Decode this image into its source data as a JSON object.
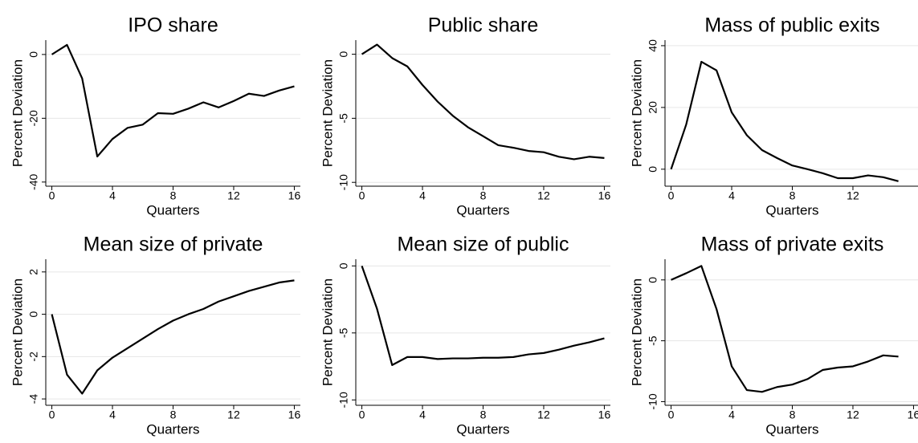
{
  "chart_data": [
    {
      "type": "line",
      "title": "IPO share",
      "x_label": "Quarters",
      "y_label": "Percent Deviation",
      "x": [
        0,
        1,
        2,
        3,
        4,
        5,
        6,
        7,
        8,
        9,
        10,
        11,
        12,
        13,
        14,
        15,
        16
      ],
      "series": [
        {
          "color": "#000000",
          "values": [
            0,
            3,
            -7.5,
            -32,
            -26.5,
            -23,
            -22,
            -18.4,
            -18.6,
            -17,
            -15,
            -16.6,
            -14.6,
            -12.3,
            -13,
            -11.3,
            -10
          ]
        }
      ],
      "xlim": [
        -0.4,
        16.4
      ],
      "xticks": [
        0,
        4,
        8,
        12,
        16
      ],
      "ylim": [
        -41.3,
        4.5
      ],
      "yticks": [
        -40,
        -20,
        0
      ],
      "grid": true
    },
    {
      "type": "line",
      "title": "Public share",
      "x_label": "Quarters",
      "y_label": "Percent Deviation",
      "x": [
        0,
        1,
        2,
        3,
        4,
        5,
        6,
        7,
        8,
        9,
        10,
        11,
        12,
        13,
        14,
        15,
        16
      ],
      "series": [
        {
          "color": "#000000",
          "values": [
            0,
            0.75,
            -0.3,
            -0.95,
            -2.4,
            -3.7,
            -4.8,
            -5.7,
            -6.4,
            -7.1,
            -7.3,
            -7.55,
            -7.65,
            -8,
            -8.2,
            -8,
            -8.1
          ]
        }
      ],
      "xlim": [
        -0.4,
        16.4
      ],
      "xticks": [
        0,
        4,
        8,
        12,
        16
      ],
      "ylim": [
        -10.3,
        1.1
      ],
      "yticks": [
        -10,
        -5,
        0
      ],
      "grid": true
    },
    {
      "type": "line",
      "title": "Mass of public exits",
      "x_label": "Quarters",
      "y_label": "Percent Deviation",
      "x": [
        0,
        1,
        2,
        3,
        4,
        5,
        6,
        7,
        8,
        9,
        10,
        11,
        12,
        13,
        14,
        15
      ],
      "series": [
        {
          "color": "#000000",
          "values": [
            0,
            14.5,
            34.8,
            32,
            18.4,
            11,
            6.2,
            3.6,
            1.2,
            0,
            -1.3,
            -2.9,
            -2.9,
            -2,
            -2.6,
            -3.9
          ]
        }
      ],
      "xlim": [
        -0.4,
        16.4
      ],
      "xticks": [
        0,
        4,
        8,
        12
      ],
      "ylim": [
        -5.5,
        41.8
      ],
      "yticks": [
        0,
        20,
        40
      ],
      "grid": true
    },
    {
      "type": "line",
      "title": "Mean size of private",
      "x_label": "Quarters",
      "y_label": "Percent Deviation",
      "x": [
        0,
        1,
        2,
        3,
        4,
        5,
        6,
        7,
        8,
        9,
        10,
        11,
        12,
        13,
        14,
        15,
        16
      ],
      "series": [
        {
          "color": "#000000",
          "values": [
            0,
            -2.85,
            -3.75,
            -2.65,
            -2.05,
            -1.6,
            -1.15,
            -0.7,
            -0.3,
            0,
            0.25,
            0.6,
            0.85,
            1.1,
            1.3,
            1.5,
            1.6
          ]
        }
      ],
      "xlim": [
        -0.4,
        16.4
      ],
      "xticks": [
        0,
        4,
        8,
        12,
        16
      ],
      "ylim": [
        -4.3,
        2.6
      ],
      "yticks": [
        -4,
        -2,
        0,
        2
      ],
      "grid": true
    },
    {
      "type": "line",
      "title": "Mean size of public",
      "x_label": "Quarters",
      "y_label": "Percent Deviation",
      "x": [
        0,
        1,
        2,
        3,
        4,
        5,
        6,
        7,
        8,
        9,
        10,
        11,
        12,
        13,
        14,
        15,
        16
      ],
      "series": [
        {
          "color": "#000000",
          "values": [
            0,
            -3.2,
            -7.4,
            -6.8,
            -6.8,
            -6.95,
            -6.9,
            -6.9,
            -6.85,
            -6.85,
            -6.8,
            -6.6,
            -6.5,
            -6.25,
            -5.95,
            -5.7,
            -5.4
          ]
        }
      ],
      "xlim": [
        -0.4,
        16.4
      ],
      "xticks": [
        0,
        4,
        8,
        12,
        16
      ],
      "ylim": [
        -10.4,
        0.5
      ],
      "yticks": [
        -10,
        -5,
        0
      ],
      "grid": true
    },
    {
      "type": "line",
      "title": "Mass of private exits",
      "x_label": "Quarters",
      "y_label": "Percent Deviation",
      "x": [
        0,
        1,
        2,
        3,
        4,
        5,
        6,
        7,
        8,
        9,
        10,
        11,
        12,
        13,
        14,
        15
      ],
      "series": [
        {
          "color": "#000000",
          "values": [
            0,
            0.55,
            1.15,
            -2.4,
            -7.1,
            -9.05,
            -9.2,
            -8.8,
            -8.6,
            -8.15,
            -7.4,
            -7.2,
            -7.1,
            -6.7,
            -6.2,
            -6.3
          ]
        }
      ],
      "xlim": [
        -0.4,
        16.4
      ],
      "xticks": [
        0,
        4,
        8,
        12,
        16
      ],
      "ylim": [
        -10.3,
        1.7
      ],
      "yticks": [
        -10,
        -5,
        0
      ],
      "grid": true
    }
  ]
}
